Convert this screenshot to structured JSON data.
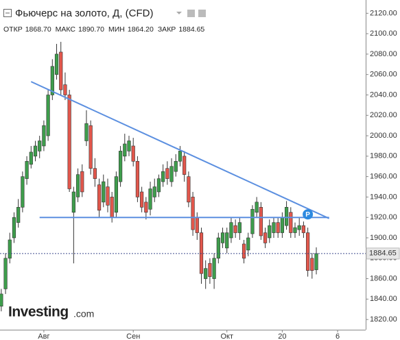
{
  "header": {
    "title": "Фьючерс на золото, Д, (CFD)",
    "ohlc": [
      {
        "label": "ОТКР",
        "value": "1868.70"
      },
      {
        "label": "МАКС",
        "value": "1890.70"
      },
      {
        "label": "МИН",
        "value": "1864.20"
      },
      {
        "label": "ЗАКР",
        "value": "1884.65"
      }
    ]
  },
  "logo": {
    "name": "Investing",
    "suffix": ".com"
  },
  "chart_data": {
    "type": "candlestick",
    "up_color": "#3e9d4c",
    "down_color": "#e2574c",
    "wick_color": "#333333",
    "xlim": [
      -0.3,
      85.6
    ],
    "xticks": [
      {
        "value": 10,
        "label": "Авг"
      },
      {
        "value": 31,
        "label": "Сен"
      },
      {
        "value": 53,
        "label": "Окт"
      },
      {
        "value": 66,
        "label": "20"
      },
      {
        "value": 79,
        "label": "6"
      }
    ],
    "ylim": [
      1810,
      2133
    ],
    "yticks": [
      {
        "value": 1820,
        "label": "1820.00"
      },
      {
        "value": 1840,
        "label": "1840.00"
      },
      {
        "value": 1860,
        "label": "1860.00"
      },
      {
        "value": 1880,
        "label": "1880.00"
      },
      {
        "value": 1900,
        "label": "1900.00"
      },
      {
        "value": 1920,
        "label": "1920.00"
      },
      {
        "value": 1940,
        "label": "1940.00"
      },
      {
        "value": 1960,
        "label": "1960.00"
      },
      {
        "value": 1980,
        "label": "1980.00"
      },
      {
        "value": 2000,
        "label": "2000.00"
      },
      {
        "value": 2020,
        "label": "2020.00"
      },
      {
        "value": 2040,
        "label": "2040.00"
      },
      {
        "value": 2060,
        "label": "2060.00"
      },
      {
        "value": 2080,
        "label": "2080.00"
      },
      {
        "value": 2100,
        "label": "2100.00"
      },
      {
        "value": 2120,
        "label": "2120.00"
      }
    ],
    "grid": false,
    "open": [
      1833,
      1850,
      1880,
      1900,
      1915,
      1930,
      1958,
      1972,
      1980,
      1985,
      1990,
      2000,
      2040,
      2060,
      2082,
      2050,
      2040,
      1925,
      1940,
      1965,
      1995,
      2010,
      1968,
      1952,
      1935,
      1950,
      1940,
      1925,
      1955,
      1980,
      1985,
      1990,
      1975,
      1945,
      1935,
      1928,
      1940,
      1945,
      1955,
      1968,
      1955,
      1965,
      1975,
      1980,
      1960,
      1940,
      1920,
      1905,
      1860,
      1875,
      1860,
      1880,
      1895,
      1890,
      1900,
      1912,
      1905,
      1894,
      1888,
      1904,
      1925,
      1930,
      1905,
      1900,
      1905,
      1915,
      1905,
      1912,
      1925,
      1905,
      1908,
      1912,
      1905,
      1880,
      1868.7
    ],
    "high": [
      1850,
      1885,
      1905,
      1925,
      1938,
      1965,
      1980,
      1990,
      1995,
      2000,
      2015,
      2045,
      2075,
      2090,
      2092,
      2062,
      2045,
      1950,
      1968,
      1972,
      2025,
      2015,
      1978,
      1958,
      1962,
      1958,
      1945,
      1965,
      1990,
      2002,
      2000,
      1998,
      1980,
      1950,
      1940,
      1955,
      1958,
      1962,
      1972,
      1975,
      1978,
      1982,
      1990,
      1985,
      1965,
      1945,
      1925,
      1910,
      1878,
      1880,
      1885,
      1905,
      1910,
      1910,
      1920,
      1918,
      1920,
      1898,
      1905,
      1932,
      1940,
      1935,
      1910,
      1918,
      1920,
      1920,
      1925,
      1936,
      1930,
      1915,
      1920,
      1916,
      1910,
      1885,
      1890.7
    ],
    "low": [
      1828,
      1845,
      1875,
      1895,
      1910,
      1925,
      1952,
      1968,
      1975,
      1978,
      1985,
      1995,
      2035,
      2055,
      2040,
      2035,
      1945,
      1875,
      1935,
      1940,
      1990,
      1962,
      1950,
      1920,
      1930,
      1925,
      1915,
      1920,
      1950,
      1975,
      1980,
      1970,
      1935,
      1925,
      1918,
      1922,
      1935,
      1940,
      1950,
      1952,
      1950,
      1960,
      1970,
      1955,
      1930,
      1902,
      1898,
      1855,
      1850,
      1855,
      1850,
      1875,
      1890,
      1885,
      1895,
      1900,
      1898,
      1875,
      1882,
      1900,
      1920,
      1898,
      1890,
      1895,
      1900,
      1900,
      1900,
      1908,
      1900,
      1900,
      1902,
      1900,
      1862,
      1860,
      1864.2
    ],
    "close": [
      1845,
      1880,
      1898,
      1920,
      1930,
      1960,
      1975,
      1984,
      1990,
      1995,
      2010,
      2040,
      2068,
      2080,
      2045,
      2040,
      1948,
      1945,
      1962,
      1945,
      2012,
      1968,
      1958,
      1927,
      1955,
      1932,
      1920,
      1960,
      1985,
      1992,
      1995,
      1975,
      1940,
      1930,
      1925,
      1948,
      1950,
      1958,
      1965,
      1958,
      1970,
      1975,
      1985,
      1962,
      1935,
      1908,
      1905,
      1865,
      1870,
      1862,
      1880,
      1900,
      1905,
      1905,
      1915,
      1905,
      1915,
      1880,
      1900,
      1928,
      1935,
      1902,
      1895,
      1912,
      1915,
      1905,
      1920,
      1930,
      1905,
      1910,
      1912,
      1905,
      1868,
      1868,
      1884.65
    ],
    "trendlines": [
      {
        "x": [
          7,
          77
        ],
        "values": [
          2053,
          1919
        ],
        "color": "#5b8fe0"
      },
      {
        "x": [
          9,
          77
        ],
        "values": [
          1920,
          1920
        ],
        "color": "#5b8fe0"
      }
    ],
    "price_line": {
      "value": 1884.65,
      "color": "#3d4a8c"
    },
    "marker": {
      "x": 72,
      "value": 1923,
      "label": "P",
      "color": "#2d8ae0"
    }
  }
}
